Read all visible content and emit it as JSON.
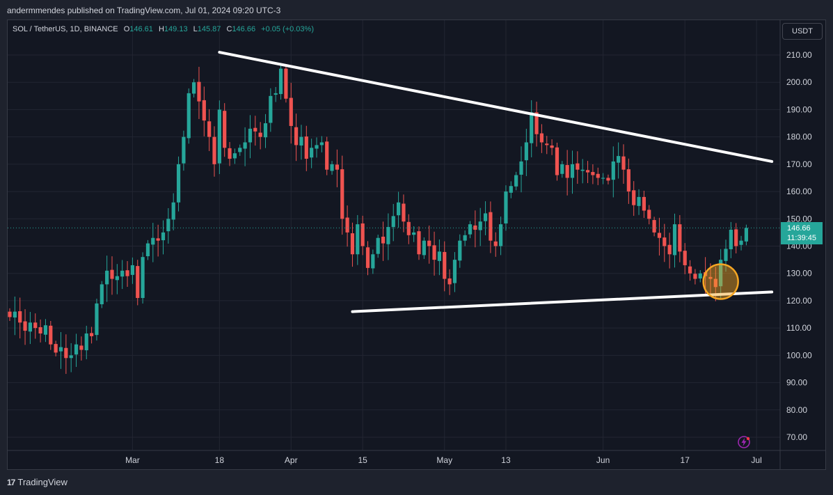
{
  "header": {
    "published_text": "andermmendes published on TradingView.com, Jul 01, 2024 09:20 UTC-3"
  },
  "legend": {
    "symbol": "SOL / TetherUS, 1D, BINANCE",
    "open_label": "O",
    "open": "146.61",
    "high_label": "H",
    "high": "149.13",
    "low_label": "L",
    "low": "145.87",
    "close_label": "C",
    "close": "146.66",
    "change": "+0.05 (+0.03%)"
  },
  "currency_button": "USDT",
  "price_tag": {
    "price": "146.66",
    "countdown": "11:39:45"
  },
  "footer": {
    "logo_text": "TradingView"
  },
  "colors": {
    "up": "#26a69a",
    "down": "#ef5350",
    "background": "#131722",
    "trendline": "#ffffff",
    "highlight": "#f5a623"
  },
  "icons": {
    "alert": "lightning-bolt-icon",
    "logo": "tradingview-logo-icon"
  },
  "chart_data": {
    "type": "candlestick",
    "title": "SOL / TetherUS, 1D, BINANCE",
    "ylim": [
      65,
      222
    ],
    "y_ticks": [
      210,
      200,
      190,
      180,
      170,
      160,
      150,
      140,
      130,
      120,
      110,
      100,
      90,
      80,
      70
    ],
    "y_tick_labels": [
      "210.00",
      "200.00",
      "190.00",
      "180.00",
      "170.00",
      "160.00",
      "150.00",
      "140.00",
      "130.00",
      "120.00",
      "110.00",
      "100.00",
      "90.00",
      "80.00",
      "70.00"
    ],
    "x_ticks": [
      {
        "date": "2024-03-01",
        "label": "Mar"
      },
      {
        "date": "2024-03-18",
        "label": "18"
      },
      {
        "date": "2024-04-01",
        "label": "Apr"
      },
      {
        "date": "2024-04-15",
        "label": "15"
      },
      {
        "date": "2024-05-01",
        "label": "May"
      },
      {
        "date": "2024-05-13",
        "label": "13"
      },
      {
        "date": "2024-06-01",
        "label": "Jun"
      },
      {
        "date": "2024-06-17",
        "label": "17"
      },
      {
        "date": "2024-07-01",
        "label": "Jul"
      }
    ],
    "start_date": "2024-02-06",
    "closes": [
      114,
      116,
      112,
      109,
      112,
      110,
      108,
      111,
      104,
      101,
      103,
      99,
      100,
      104,
      102,
      108,
      107,
      119,
      126,
      131,
      128,
      129,
      131,
      129,
      133,
      121,
      136,
      141,
      143,
      142,
      145,
      150,
      156,
      170,
      180,
      196,
      200,
      193,
      186,
      180,
      170,
      190,
      176,
      172,
      174,
      176,
      178,
      183,
      182,
      180,
      185,
      195,
      196,
      205,
      194,
      184,
      177,
      180,
      172,
      176,
      177,
      178,
      168,
      170,
      168,
      150,
      145,
      137,
      148,
      140,
      132,
      137,
      143,
      141,
      147,
      151,
      156,
      149,
      144,
      145,
      137,
      142,
      140,
      135,
      138,
      128,
      126,
      135,
      142,
      144,
      148,
      146,
      149,
      152,
      142,
      140,
      148,
      160,
      162,
      166,
      171,
      178,
      189,
      181,
      178,
      177,
      176,
      166,
      170,
      165,
      170,
      168,
      168,
      167,
      166,
      165,
      165,
      164,
      171,
      173,
      168,
      160,
      155,
      158,
      153,
      150,
      145,
      143,
      140,
      137,
      148,
      138,
      133,
      130,
      128,
      130,
      129,
      128,
      125,
      135,
      139,
      146,
      140,
      142,
      146.66
    ],
    "down_ticks_at": [],
    "trendlines": [
      {
        "name": "upper-resistance",
        "from": {
          "date": "2024-03-18",
          "price": 211
        },
        "to": {
          "date": "2024-07-04",
          "price": 171
        }
      },
      {
        "name": "lower-support",
        "from": {
          "date": "2024-04-13",
          "price": 116
        },
        "to": {
          "date": "2024-07-04",
          "price": 123.2
        }
      }
    ],
    "highlight": {
      "date": "2024-06-24",
      "price": 127,
      "shape": "circle"
    },
    "current_price": 146.66,
    "grid": true
  }
}
